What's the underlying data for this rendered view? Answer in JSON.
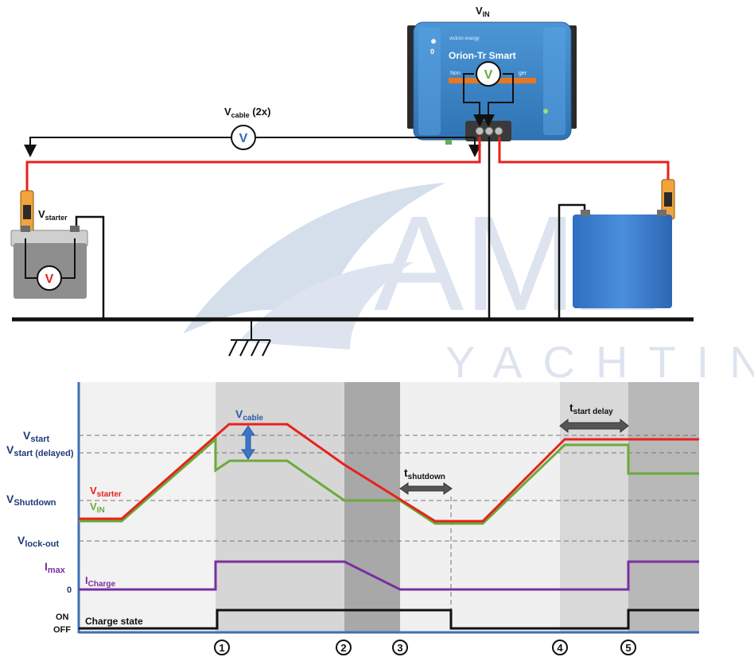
{
  "watermark": {
    "brand": "AMZ",
    "sub": "YACHTING"
  },
  "wiring": {
    "vin_label": "V",
    "vin_sub": "IN",
    "vcable_label": "V",
    "vcable_sub": "cable",
    "vcable_suffix": " (2x)",
    "vstarter_label": "V",
    "vstarter_sub": "starter",
    "meter_symbol": "V",
    "device": {
      "brand": "victron energy",
      "name": "Orion-Tr Smart",
      "subtitle_left": "Non",
      "subtitle_right": "ger",
      "digit": "0"
    },
    "icons": [
      "voltmeter-icon",
      "ground-icon",
      "fuse-icon",
      "battery-icon",
      "orion-converter-icon"
    ]
  },
  "timing": {
    "y_levels": {
      "vstart": {
        "main": "V",
        "sub": "start"
      },
      "vstart_delayed": {
        "main": "V",
        "sub": "start (delayed)"
      },
      "vshutdown": {
        "main": "V",
        "sub": "Shutdown"
      },
      "vlockout": {
        "main": "V",
        "sub": "lock-out"
      },
      "imax": {
        "main": "I",
        "sub": "max"
      },
      "zero": "0",
      "on": "ON",
      "off": "OFF"
    },
    "series_labels": {
      "vstarter": {
        "main": "V",
        "sub": "starter",
        "color": "#e8211c"
      },
      "vin": {
        "main": "V",
        "sub": "IN",
        "color": "#6aaa3a"
      },
      "icharge": {
        "main": "I",
        "sub": "Charge",
        "color": "#7b2fa0"
      },
      "charge_state": "Charge state"
    },
    "annotations": {
      "vcable": {
        "main": "V",
        "sub": "cable"
      },
      "tshutdown": {
        "main": "t",
        "sub": "shutdown"
      },
      "tstart_delay": {
        "main": "t",
        "sub": "start delay"
      }
    },
    "events": [
      "1",
      "2",
      "3",
      "4",
      "5"
    ],
    "colors": {
      "axis": "#3d6fb6",
      "label": "#1f3a77",
      "red": "#e8211c",
      "green": "#6aaa3a",
      "purple": "#7b2fa0",
      "black": "#111111"
    }
  }
}
